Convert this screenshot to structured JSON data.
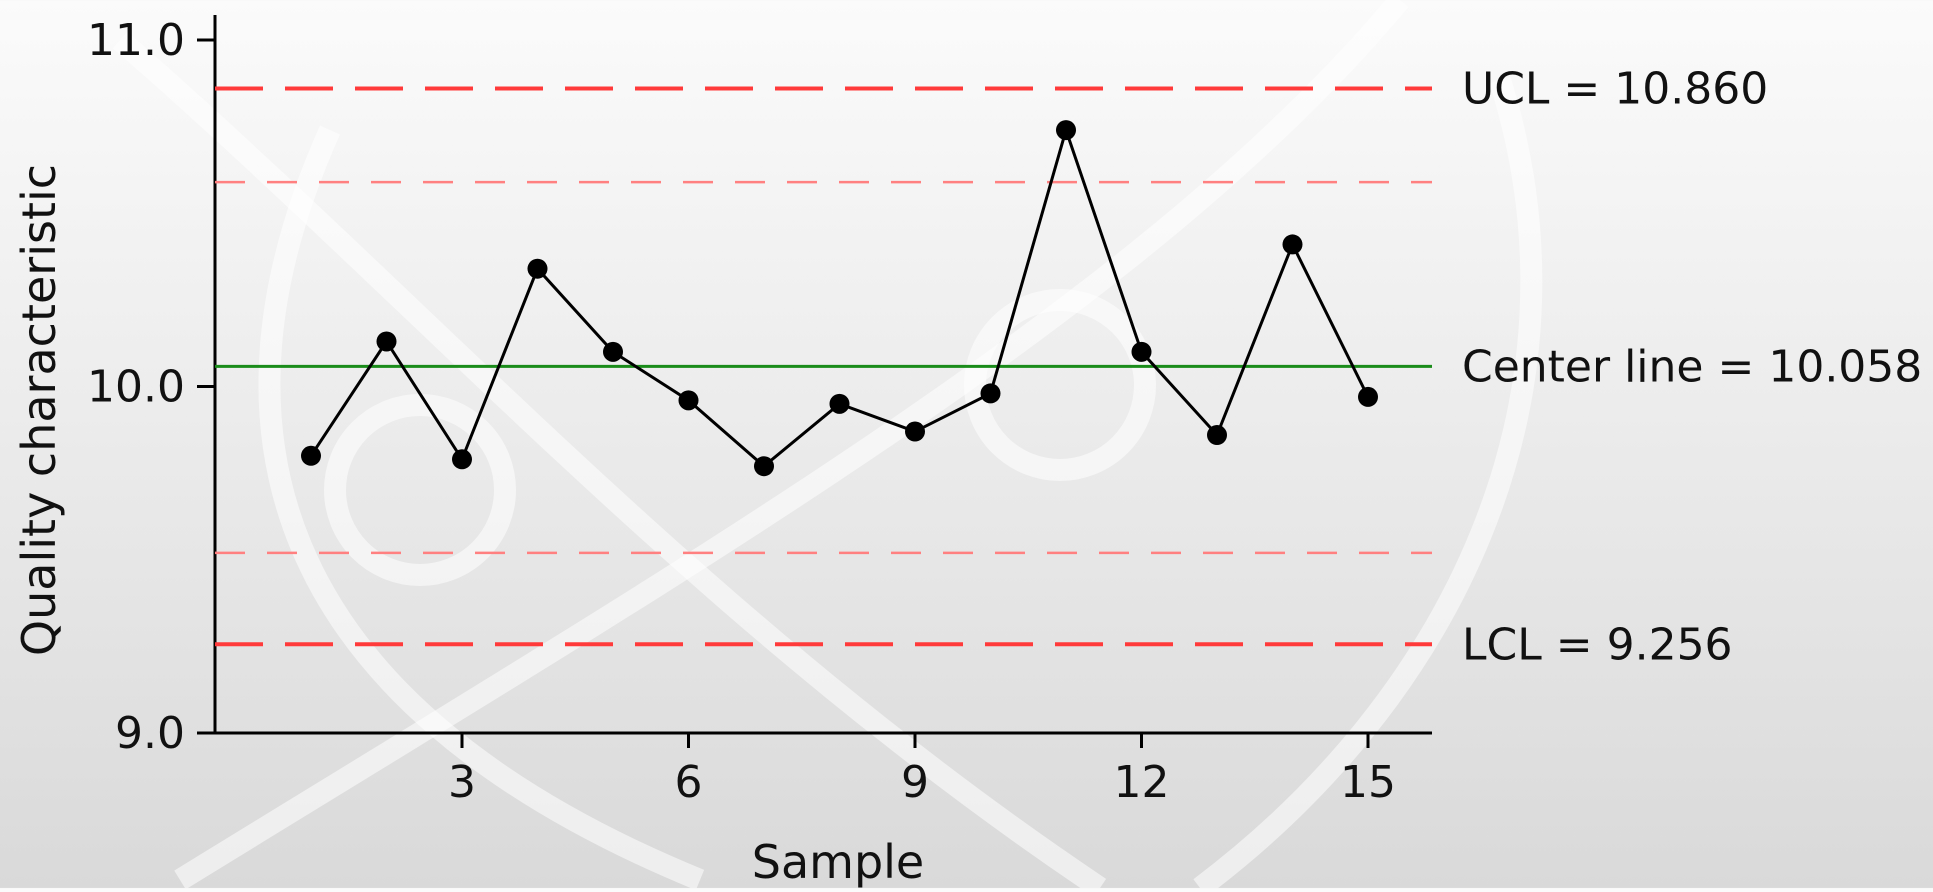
{
  "chart_data": {
    "type": "line",
    "title": "",
    "xlabel": "Sample",
    "ylabel": "Quality characteristic",
    "xlim": [
      0,
      16
    ],
    "ylim": [
      9.0,
      11.0
    ],
    "x_ticks": [
      3,
      6,
      9,
      12,
      15
    ],
    "x_tick_labels": [
      "3",
      "6",
      "9",
      "12",
      "15"
    ],
    "y_ticks": [
      9.0,
      10.0,
      11.0
    ],
    "y_tick_labels": [
      "9.0",
      "10.0",
      "11.0"
    ],
    "grid": false,
    "series": [
      {
        "x": [
          1,
          2,
          3,
          4,
          5,
          6,
          7,
          8,
          9,
          10,
          11,
          12,
          13,
          14,
          15
        ],
        "y": [
          9.8,
          10.13,
          9.79,
          10.34,
          10.1,
          9.96,
          9.77,
          9.95,
          9.87,
          9.98,
          10.74,
          10.1,
          9.86,
          10.41,
          9.97
        ],
        "color": "#000000"
      }
    ],
    "reference_lines": [
      {
        "y": 10.86,
        "label": "UCL = 10.860",
        "style": "long-dash",
        "color": "#ff3a3a"
      },
      {
        "y": 10.59,
        "label": "",
        "style": "short-dash",
        "color": "#ff8080"
      },
      {
        "y": 10.058,
        "label": "Center line = 10.058",
        "style": "solid",
        "color": "#1a8c1a"
      },
      {
        "y": 9.52,
        "label": "",
        "style": "short-dash",
        "color": "#ff8080"
      },
      {
        "y": 9.256,
        "label": "LCL = 9.256",
        "style": "long-dash",
        "color": "#ff3a3a"
      }
    ]
  }
}
